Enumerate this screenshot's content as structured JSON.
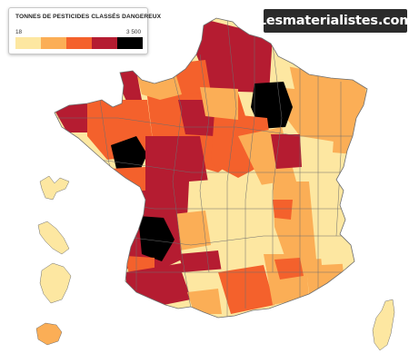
{
  "legend": {
    "title": "TONNES DE PESTICIDES CLASSÉS DANGEREUX",
    "min_label": "18",
    "max_label": "3 500",
    "colors": [
      "#fde7a1",
      "#fbae56",
      "#f4612c",
      "#b51c31",
      "#000000"
    ]
  },
  "brand": {
    "text": "Lesmaterialistes.com"
  },
  "map_colors": {
    "level1": "#fde7a1",
    "level2": "#fbae56",
    "level3": "#f4612c",
    "level4": "#b51c31",
    "level5": "#000000",
    "border": "#6e6e6e"
  }
}
